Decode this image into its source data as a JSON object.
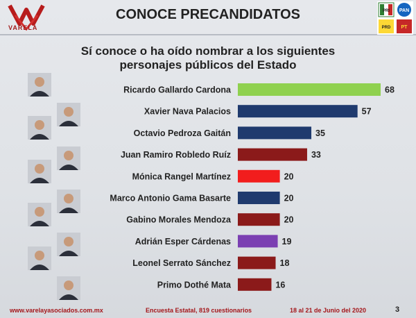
{
  "header": {
    "title": "CONOCE PRECANDIDATOS",
    "logo_text": "VARELA",
    "party_logo_labels": [
      "PRI",
      "PAN",
      "PRD",
      "PT"
    ]
  },
  "chart_data": {
    "type": "bar",
    "orientation": "horizontal",
    "title": "Sí conoce o ha oído nombrar a los siguientes personajes públicos del Estado",
    "title_lines": [
      "Sí conoce o ha oído nombrar a los siguientes",
      "personajes públicos del Estado"
    ],
    "categories": [
      "Ricardo Gallardo Cardona",
      "Xavier Nava Palacios",
      "Octavio Pedroza Gaitán",
      "Juan Ramiro Robledo Ruíz",
      "Mónica Rangel Martínez",
      "Marco Antonio Gama Basarte",
      "Gabino Morales Mendoza",
      "Adrián Esper Cárdenas",
      "Leonel Serrato Sánchez",
      "Primo Dothé Mata"
    ],
    "values": [
      68,
      57,
      35,
      33,
      20,
      20,
      20,
      19,
      18,
      16
    ],
    "colors": [
      "#8fd14f",
      "#1f3a6e",
      "#1f3a6e",
      "#8b1a1a",
      "#f21d1d",
      "#1f3a6e",
      "#8b1a1a",
      "#7b3fb2",
      "#8b1a1a",
      "#8b1a1a"
    ],
    "xlim": [
      0,
      68
    ],
    "grid": false,
    "legend": "none"
  },
  "footer": {
    "website": "www.varelayasociados.com.mx",
    "survey": "Encuesta Estatal, 819 cuestionarios",
    "dates": "18 al 21 de Junio del 2020",
    "page": "3"
  }
}
